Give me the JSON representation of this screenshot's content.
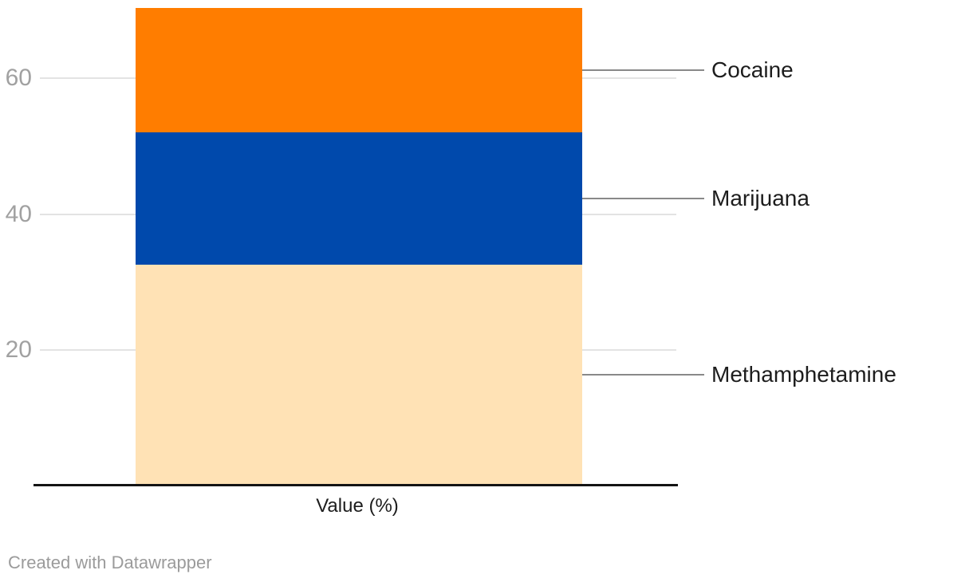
{
  "chart_data": {
    "type": "bar",
    "subtype": "stacked-column-single",
    "title": "",
    "xlabel": "Value (%)",
    "ylabel": "",
    "categories": [
      ""
    ],
    "series": [
      {
        "name": "Methamphetamine",
        "value": 32.6,
        "color": "#ffe2b5"
      },
      {
        "name": "Marijuana",
        "value": 19.4,
        "color": "#0049ac"
      },
      {
        "name": "Cocaine",
        "value": 18.4,
        "color": "#ff7d00"
      }
    ],
    "stack_order_bottom_to_top": [
      "Methamphetamine",
      "Marijuana",
      "Cocaine"
    ],
    "total": 70.4,
    "yticks": [
      20,
      40,
      60
    ],
    "ylim": [
      0,
      70.4
    ],
    "grid": true,
    "legend_position": "right-leader-line-labels"
  },
  "footer": {
    "credit": "Created with Datawrapper"
  },
  "style_colors": {
    "accent_orange": "#ff7d00",
    "accent_blue": "#0049ac",
    "accent_peach": "#ffe2b5",
    "gridline_gray": "#e3e3e3",
    "leader_gray": "#898989",
    "tick_text_gray": "#a1a1a1",
    "label_text": "#1d1d1d",
    "axis_black": "#141414"
  }
}
